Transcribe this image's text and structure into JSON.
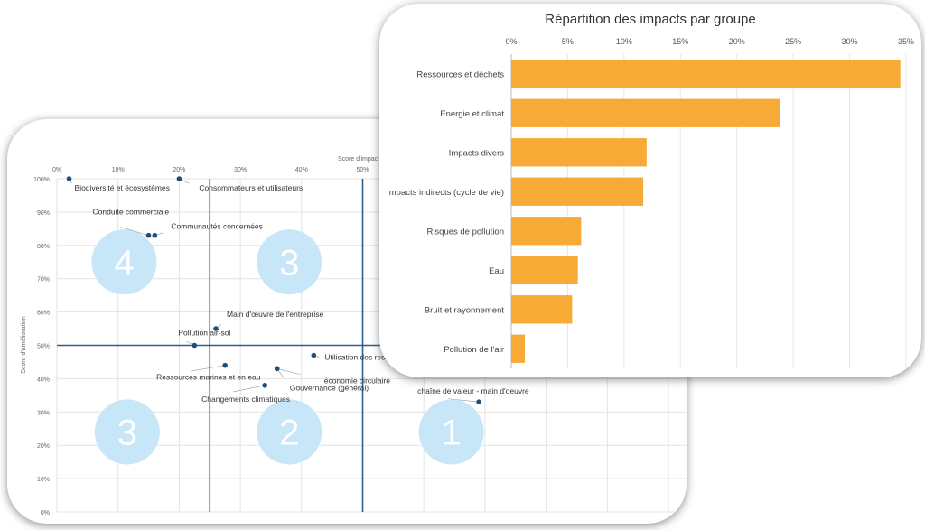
{
  "chart_data": [
    {
      "type": "scatter",
      "title": "",
      "xlabel": "Score d'impac",
      "ylabel": "Score d'amélioration",
      "xticks": [
        "0%",
        "10%",
        "20%",
        "30%",
        "40%",
        "50%"
      ],
      "yticks": [
        "100%",
        "90%",
        "80%",
        "70%",
        "60%",
        "50%",
        "40%",
        "30%",
        "20%",
        "10%",
        "0%"
      ],
      "xlim": [
        0,
        1.0
      ],
      "ylim": [
        0,
        1.0
      ],
      "thresholds": {
        "x": [
          0.25,
          0.5
        ],
        "y": [
          0.5
        ]
      },
      "marker_color": "#1f4e79",
      "line_color": "#2e5f8a",
      "points": [
        {
          "name": "Biodiversité et écosystèmes",
          "x": 0.02,
          "y": 1.0
        },
        {
          "name": "Consommateurs et utilisateurs",
          "x": 0.2,
          "y": 1.0
        },
        {
          "name": "Conduite commerciale",
          "x": 0.15,
          "y": 0.83
        },
        {
          "name": "Communautés concernées",
          "x": 0.16,
          "y": 0.83
        },
        {
          "name": "Main d'œuvre de l'entreprise",
          "x": 0.26,
          "y": 0.55
        },
        {
          "name": "Pollution air-sol",
          "x": 0.225,
          "y": 0.5
        },
        {
          "name": "Utilisation des resso",
          "x": 0.42,
          "y": 0.47
        },
        {
          "name": "économie circulaire",
          "x": 0.36,
          "y": 0.43
        },
        {
          "name": "Ressources marines et en eau",
          "x": 0.275,
          "y": 0.44
        },
        {
          "name": "Gouvernance (général)",
          "x": 0.36,
          "y": 0.43
        },
        {
          "name": "Changements climatiques",
          "x": 0.34,
          "y": 0.38
        },
        {
          "name": "chaîne de valeur - main d'oeuvre",
          "x": 0.69,
          "y": 0.33
        }
      ],
      "zones": [
        {
          "label": "4"
        },
        {
          "label": "3"
        },
        {
          "label": "3"
        },
        {
          "label": "2"
        },
        {
          "label": "1"
        }
      ],
      "zone_color": "#c7e6f7"
    },
    {
      "type": "bar",
      "orientation": "horizontal",
      "title": "Répartition des impacts par groupe",
      "categories": [
        "Ressources et déchets",
        "Energie et climat",
        "Impacts divers",
        "Impacts indirects (cycle de vie)",
        "Risques de pollution",
        "Eau",
        "Bruit et rayonnement",
        "Pollution de l'air"
      ],
      "values": [
        0.345,
        0.238,
        0.12,
        0.117,
        0.062,
        0.059,
        0.054,
        0.012
      ],
      "xticks": [
        "0%",
        "5%",
        "10%",
        "15%",
        "20%",
        "25%",
        "30%",
        "35%"
      ],
      "xlim": [
        0,
        0.35
      ],
      "bar_color": "#f8aa36",
      "grid": true
    }
  ]
}
